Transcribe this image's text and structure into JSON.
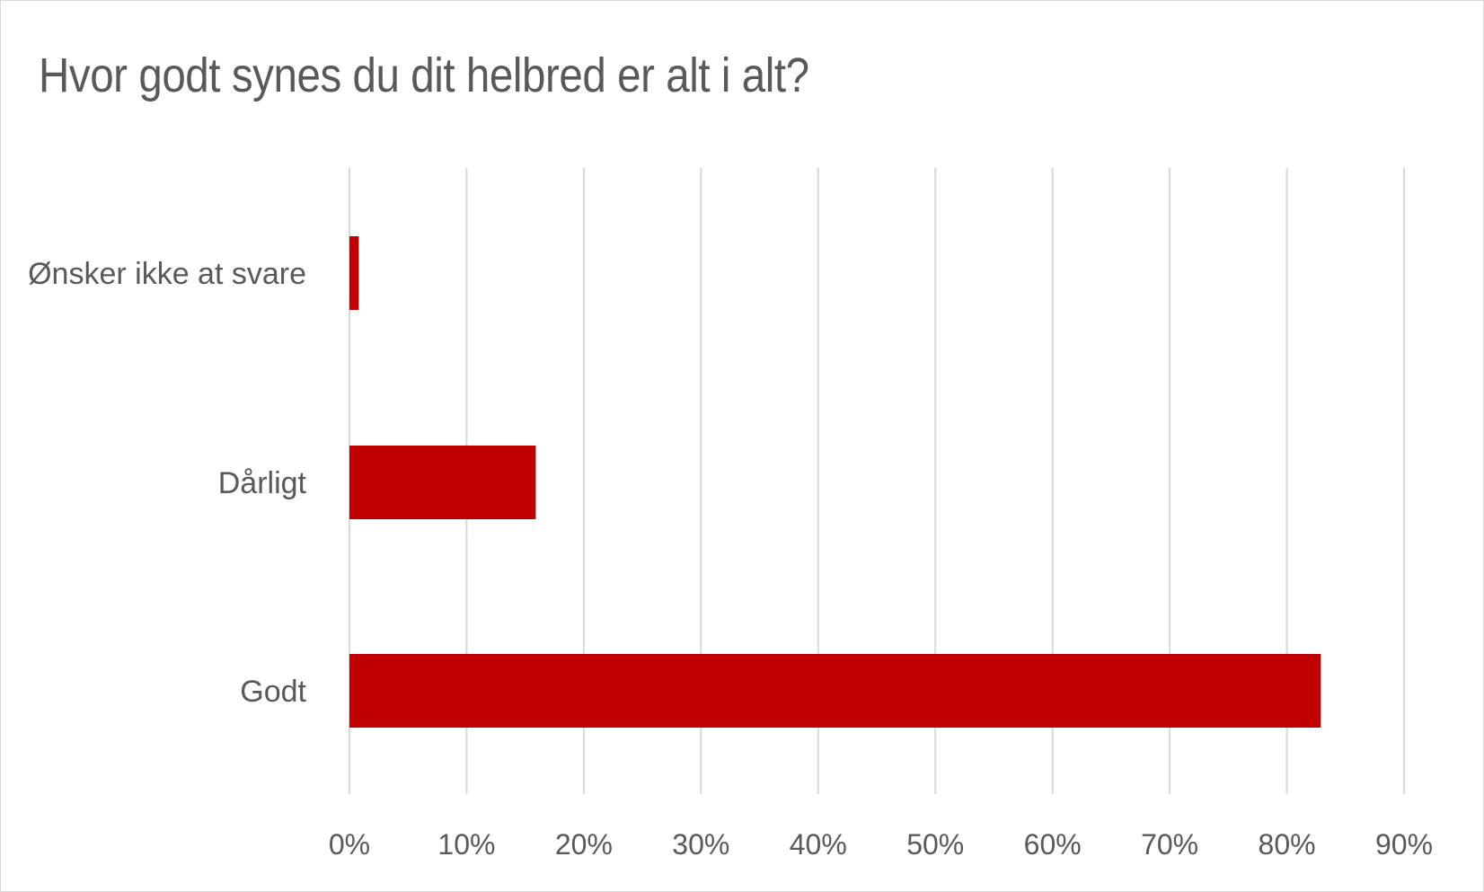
{
  "chart_data": {
    "type": "bar",
    "orientation": "horizontal",
    "title": "Hvor godt synes du dit helbred er alt i alt?",
    "categories": [
      "Ønsker ikke at svare",
      "Dårligt",
      "Godt"
    ],
    "values": [
      0.8,
      15.9,
      82.9
    ],
    "xlim": [
      0,
      90
    ],
    "x_ticks": [
      "0%",
      "10%",
      "20%",
      "30%",
      "40%",
      "50%",
      "60%",
      "70%",
      "80%",
      "90%"
    ],
    "x_tick_values": [
      0,
      10,
      20,
      30,
      40,
      50,
      60,
      70,
      80,
      90
    ],
    "grid": true,
    "bar_color": "#C00000",
    "grid_color": "#D9D9D9",
    "text_color": "#595959"
  }
}
